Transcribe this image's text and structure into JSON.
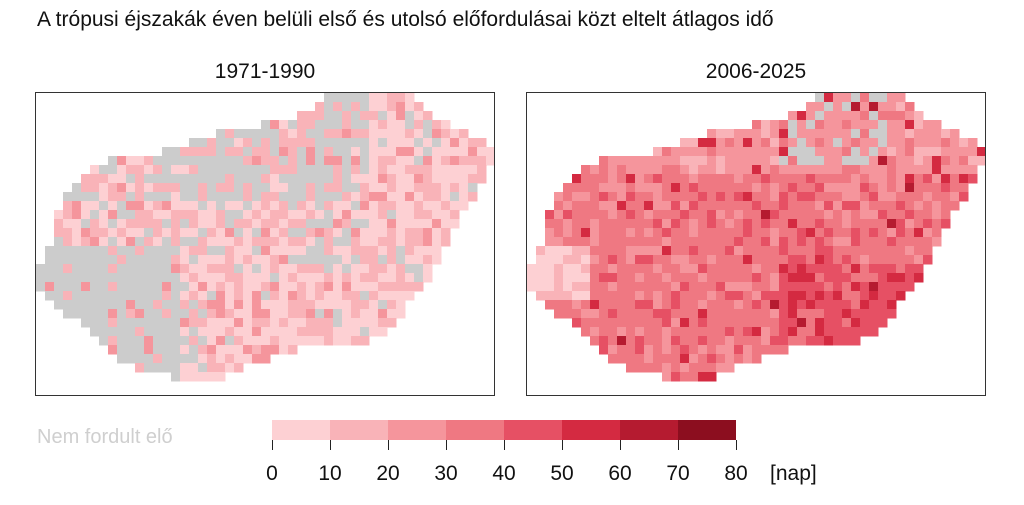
{
  "title": "A trópusi éjszakák éven belüli első és utolsó előfordulásai közt eltelt átlagos idő",
  "panels": [
    {
      "title": "1971-1990"
    },
    {
      "title": "2006-2025"
    }
  ],
  "legend": {
    "no_data_label": "Nem fordult elő",
    "no_data_color": "#cccccc",
    "ticks": [
      "0",
      "10",
      "20",
      "30",
      "40",
      "50",
      "60",
      "70",
      "80"
    ],
    "unit": "[nap]",
    "colors": [
      "#fdd0d3",
      "#f9b3b8",
      "#f5959c",
      "#ef7882",
      "#e65064",
      "#d42a41",
      "#b51b30",
      "#8c0e1f"
    ]
  }
}
